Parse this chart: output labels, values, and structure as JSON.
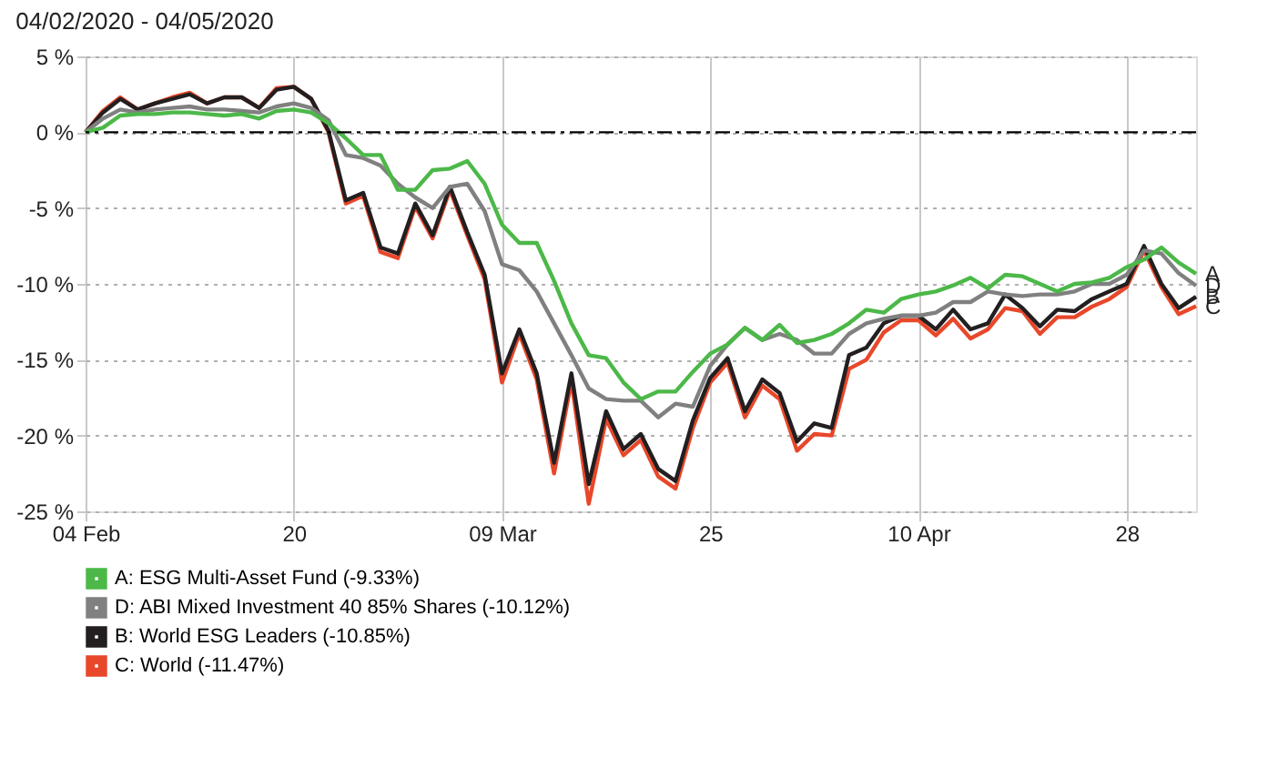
{
  "chart_data": {
    "type": "line",
    "title": "04/02/2020 - 04/05/2020",
    "categories": [
      "04 Feb",
      null,
      null,
      null,
      null,
      null,
      null,
      null,
      null,
      null,
      null,
      null,
      "20",
      null,
      null,
      null,
      null,
      null,
      null,
      null,
      null,
      null,
      null,
      null,
      "09 Mar",
      null,
      null,
      null,
      null,
      null,
      null,
      null,
      null,
      null,
      null,
      null,
      "25",
      null,
      null,
      null,
      null,
      null,
      null,
      null,
      null,
      null,
      null,
      null,
      "10 Apr",
      null,
      null,
      null,
      null,
      null,
      null,
      null,
      null,
      null,
      null,
      null,
      "28",
      null,
      null,
      null,
      null
    ],
    "ylim": [
      -25,
      5
    ],
    "yticks": [
      {
        "value": 5,
        "label": "5 %"
      },
      {
        "value": 0,
        "label": "0 %"
      },
      {
        "value": -5,
        "label": "-5 %"
      },
      {
        "value": -10,
        "label": "-10 %"
      },
      {
        "value": -15,
        "label": "-15 %"
      },
      {
        "value": -20,
        "label": "-20 %"
      },
      {
        "value": -25,
        "label": "-25 %"
      }
    ],
    "series": [
      {
        "name": "A: ESG Multi-Asset Fund (-9.33%)",
        "color": "#4cb848",
        "values": [
          0,
          0.3,
          1.1,
          1.2,
          1.2,
          1.3,
          1.3,
          1.2,
          1.1,
          1.2,
          0.9,
          1.4,
          1.5,
          1.3,
          0.6,
          -0.4,
          -1.5,
          -1.5,
          -3.8,
          -3.8,
          -2.5,
          -2.4,
          -1.9,
          -3.4,
          -6.1,
          -7.3,
          -7.3,
          -9.8,
          -12.6,
          -14.7,
          -14.9,
          -16.5,
          -17.6,
          -17.1,
          -17.1,
          -15.8,
          -14.6,
          -14.0,
          -12.9,
          -13.7,
          -12.7,
          -13.9,
          -13.7,
          -13.3,
          -12.6,
          -11.7,
          -11.9,
          -11.0,
          -10.7,
          -10.5,
          -10.1,
          -9.6,
          -10.3,
          -9.4,
          -9.5,
          -10.0,
          -10.5,
          -10.0,
          -9.9,
          -9.6,
          -8.9,
          -8.4,
          -7.6,
          -8.6,
          -9.33
        ]
      },
      {
        "name": "D: ABI Mixed Investment 40 85% Shares (-10.12%)",
        "color": "#808080",
        "values": [
          0,
          0.9,
          1.5,
          1.3,
          1.5,
          1.6,
          1.7,
          1.5,
          1.5,
          1.4,
          1.3,
          1.7,
          1.9,
          1.6,
          0.8,
          -1.5,
          -1.7,
          -2.2,
          -3.4,
          -4.3,
          -5.0,
          -3.6,
          -3.4,
          -5.2,
          -8.7,
          -9.1,
          -10.5,
          -12.6,
          -14.7,
          -16.9,
          -17.6,
          -17.7,
          -17.7,
          -18.8,
          -17.9,
          -18.1,
          -15.4,
          -14.0,
          -12.9,
          -13.7,
          -13.3,
          -13.7,
          -14.6,
          -14.6,
          -13.3,
          -12.6,
          -12.3,
          -12.1,
          -12.1,
          -11.9,
          -11.2,
          -11.2,
          -10.5,
          -10.7,
          -10.8,
          -10.7,
          -10.7,
          -10.5,
          -10.0,
          -10.0,
          -9.4,
          -7.8,
          -8.0,
          -9.3,
          -10.12
        ]
      },
      {
        "name": "B: World ESG Leaders (-10.85%)",
        "color": "#231f20",
        "values": [
          0,
          1.3,
          2.2,
          1.5,
          1.9,
          2.2,
          2.5,
          1.9,
          2.3,
          2.3,
          1.6,
          2.8,
          3.0,
          2.2,
          0.1,
          -4.5,
          -4.0,
          -7.6,
          -8.0,
          -4.7,
          -6.8,
          -3.6,
          -6.6,
          -9.4,
          -15.9,
          -13.0,
          -15.9,
          -21.8,
          -15.9,
          -23.2,
          -18.4,
          -20.9,
          -19.9,
          -22.2,
          -23.0,
          -19.0,
          -16.2,
          -14.9,
          -18.4,
          -16.3,
          -17.2,
          -20.4,
          -19.2,
          -19.5,
          -14.7,
          -14.2,
          -12.6,
          -12.1,
          -12.1,
          -13.0,
          -11.7,
          -13.0,
          -12.6,
          -10.7,
          -11.6,
          -12.8,
          -11.7,
          -11.8,
          -11.0,
          -10.5,
          -10.0,
          -7.5,
          -10.0,
          -11.6,
          -10.85
        ]
      },
      {
        "name": "C: World (-11.47%)",
        "color": "#e8472a",
        "values": [
          0,
          1.4,
          2.3,
          1.5,
          1.9,
          2.3,
          2.6,
          1.9,
          2.3,
          2.3,
          1.6,
          2.9,
          3.0,
          2.2,
          0.0,
          -4.7,
          -4.2,
          -7.9,
          -8.3,
          -4.9,
          -7.0,
          -3.8,
          -6.8,
          -9.7,
          -16.5,
          -13.3,
          -16.3,
          -22.5,
          -16.4,
          -24.5,
          -18.9,
          -21.3,
          -20.3,
          -22.7,
          -23.5,
          -19.5,
          -16.5,
          -15.2,
          -18.8,
          -16.7,
          -17.6,
          -21.0,
          -19.9,
          -20.0,
          -15.6,
          -15.0,
          -13.2,
          -12.4,
          -12.4,
          -13.4,
          -12.3,
          -13.6,
          -13.0,
          -11.6,
          -11.8,
          -13.3,
          -12.2,
          -12.2,
          -11.5,
          -11.0,
          -10.2,
          -7.8,
          -10.2,
          -12.0,
          -11.47
        ]
      }
    ],
    "ref_lines": [
      {
        "axis": "y",
        "value": 0,
        "color": "#000000",
        "line_style": "dashed"
      }
    ],
    "annotations": [
      "A",
      "D",
      "B",
      "C"
    ],
    "grid": true,
    "legend": "bottom",
    "marker": "none",
    "line_style": "solid"
  }
}
